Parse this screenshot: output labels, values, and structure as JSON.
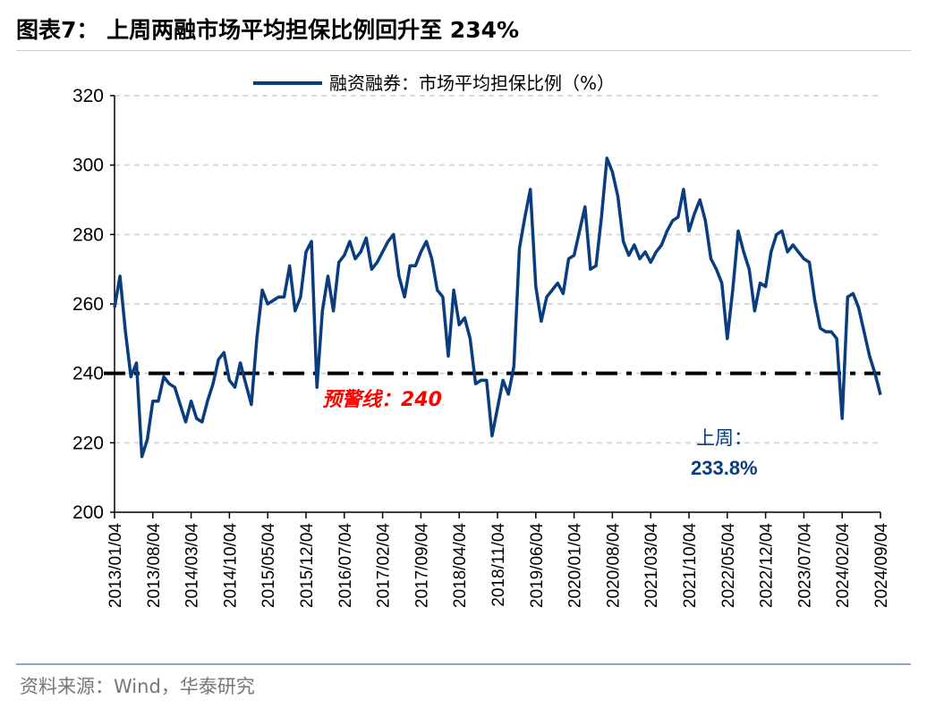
{
  "title": "图表7：  上周两融市场平均担保比例回升至 234%",
  "source": "资料来源：Wind，华泰研究",
  "chart_data": {
    "type": "line",
    "title": "图表7：  上周两融市场平均担保比例回升至 234%",
    "xlabel": "",
    "ylabel": "",
    "ylim": [
      200,
      320
    ],
    "yticks": [
      "200",
      "220",
      "240",
      "260",
      "280",
      "300",
      "320"
    ],
    "xticks": [
      "2013/01/04",
      "2013/08/04",
      "2014/03/04",
      "2014/10/04",
      "2015/05/04",
      "2015/12/04",
      "2016/07/04",
      "2017/02/04",
      "2017/09/04",
      "2018/04/04",
      "2018/11/04",
      "2019/06/04",
      "2020/01/04",
      "2020/08/04",
      "2021/03/04",
      "2021/10/04",
      "2022/05/04",
      "2022/12/04",
      "2023/07/04",
      "2024/02/04",
      "2024/09/04"
    ],
    "grid": "horizontal dotted",
    "legend_position": "top-center",
    "series": [
      {
        "name": "融资融券：市场平均担保比例（%）",
        "color": "#0a3d7d",
        "monthly_values_by_year": {
          "2013": [
            259,
            268,
            252,
            239,
            243,
            216,
            221,
            232,
            232,
            239,
            237,
            236
          ],
          "2014": [
            231,
            226,
            232,
            227,
            226,
            232,
            237,
            244,
            246,
            238,
            236,
            243
          ],
          "2015": [
            237,
            231,
            250,
            264,
            260,
            261,
            262,
            262,
            271,
            258,
            262,
            275
          ],
          "2016": [
            278,
            236,
            258,
            268,
            258,
            272,
            274,
            278,
            273,
            275,
            279,
            270
          ],
          "2017": [
            272,
            275,
            278,
            280,
            268,
            262,
            271,
            271,
            275,
            278,
            273,
            264
          ],
          "2018": [
            262,
            245,
            264,
            254,
            256,
            250,
            237,
            238,
            238,
            222,
            230,
            238
          ],
          "2019": [
            234,
            242,
            276,
            285,
            293,
            265,
            255,
            262,
            264,
            266,
            263,
            273
          ],
          "2020": [
            274,
            281,
            288,
            270,
            271,
            285,
            302,
            298,
            291,
            278,
            274,
            277
          ],
          "2021": [
            273,
            275,
            272,
            275,
            277,
            281,
            284,
            285,
            293,
            281,
            286,
            290
          ],
          "2022": [
            284,
            273,
            270,
            266,
            250,
            264,
            281,
            275,
            270,
            258,
            266,
            265
          ],
          "2023": [
            275,
            280,
            281,
            275,
            277,
            275,
            273,
            272,
            261,
            253,
            252,
            252
          ],
          "2024": [
            250,
            227,
            262,
            263,
            259,
            252,
            245,
            240,
            233.8
          ]
        }
      }
    ],
    "reference_line": {
      "value": 240,
      "label": "预警线：240",
      "color": "#000000",
      "label_color": "#ff0000",
      "style": "dash-dot"
    },
    "annotation": {
      "label": "上周：",
      "value_label": "233.8%",
      "color": "#0a3d7d"
    }
  }
}
